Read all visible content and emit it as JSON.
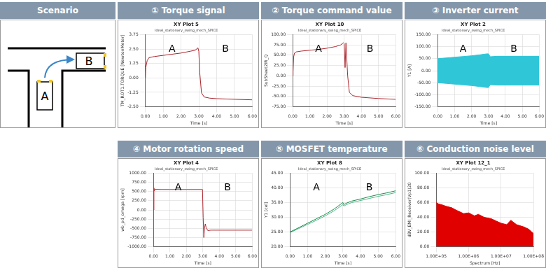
{
  "scenario": {
    "header": "Scenario",
    "labels": [
      "A",
      "B"
    ]
  },
  "chart_data": [
    {
      "header": "① Torque signal",
      "type": "line",
      "title": "XY Plot 5",
      "subtitle": "Ideal_stationary_swing_mech_SPICE",
      "x_label": "Time [s]",
      "y_label": "TM_ROT1.TORQUE [NewtonMeter]",
      "annotations": [
        "A",
        "B"
      ],
      "grid": true,
      "xlim": [
        0,
        6
      ],
      "xticks": [
        {
          "value": 0,
          "label": "0.00"
        },
        {
          "value": 1,
          "label": "1.00"
        },
        {
          "value": 2,
          "label": "2.00"
        },
        {
          "value": 3,
          "label": "3.00"
        },
        {
          "value": 4,
          "label": "4.00"
        },
        {
          "value": 5,
          "label": "5.00"
        },
        {
          "value": 6,
          "label": "6.00"
        }
      ],
      "ylim": [
        -2.5,
        3.75
      ],
      "yticks": [
        {
          "value": -2.5,
          "label": "-2.50"
        },
        {
          "value": -1.25,
          "label": "-1.25"
        },
        {
          "value": 0,
          "label": "0.00"
        },
        {
          "value": 1.25,
          "label": "1.25"
        },
        {
          "value": 2.5,
          "label": "2.50"
        },
        {
          "value": 3.75,
          "label": "3.75"
        }
      ],
      "x": [
        0,
        0.02,
        0.1,
        0.2,
        0.5,
        1,
        1.5,
        2,
        2.5,
        2.8,
        2.95,
        3.0,
        3.05,
        3.15,
        3.3,
        3.6,
        4,
        5,
        6
      ],
      "series": [
        {
          "color": "#a8232a",
          "values": [
            0,
            0.9,
            1.5,
            1.75,
            1.85,
            1.95,
            2.05,
            2.15,
            2.3,
            2.4,
            2.6,
            2.3,
            0.5,
            -1.3,
            -1.65,
            -1.75,
            -1.8,
            -1.85,
            -1.9
          ]
        }
      ]
    },
    {
      "header": "② Torque command value",
      "type": "line",
      "title": "XY Plot 10",
      "subtitle": "Ideal_stationary_swing_mech_SPICE",
      "x_label": "Time [s]",
      "y_label": "SubSheet2IR_Q",
      "annotations": [
        "A",
        "B"
      ],
      "grid": true,
      "xlim": [
        0,
        6
      ],
      "xticks": [
        {
          "value": 0,
          "label": "0.00"
        },
        {
          "value": 1,
          "label": "1.00"
        },
        {
          "value": 2,
          "label": "2.00"
        },
        {
          "value": 3,
          "label": "3.00"
        },
        {
          "value": 4,
          "label": "4.00"
        },
        {
          "value": 5,
          "label": "5.00"
        },
        {
          "value": 6,
          "label": "6.00"
        }
      ],
      "ylim": [
        -75,
        100
      ],
      "yticks": [
        {
          "value": -75,
          "label": "-75.00"
        },
        {
          "value": -50,
          "label": "-50.00"
        },
        {
          "value": -25,
          "label": "-25.00"
        },
        {
          "value": 0,
          "label": "0.00"
        },
        {
          "value": 25,
          "label": "25.00"
        },
        {
          "value": 50,
          "label": "50.00"
        },
        {
          "value": 75,
          "label": "75.00"
        },
        {
          "value": 100,
          "label": "100.00"
        }
      ],
      "x": [
        0,
        0.02,
        0.05,
        0.1,
        0.2,
        0.5,
        1,
        1.5,
        2,
        2.5,
        2.8,
        2.95,
        3.0,
        3.05,
        3.1,
        3.2,
        3.3,
        3.5,
        4,
        5,
        6
      ],
      "series": [
        {
          "color": "#b0282f",
          "values": [
            0,
            10,
            45,
            55,
            58,
            60,
            62,
            64,
            67,
            71,
            75,
            80,
            78,
            20,
            80,
            0,
            -40,
            -48,
            -52,
            -55,
            -57
          ]
        }
      ]
    },
    {
      "header": "③ Inverter current",
      "type": "band",
      "title": "XY Plot 2",
      "subtitle": "Ideal_stationary_swing_mech_SPICE",
      "x_label": "Time [s]",
      "y_label": "Y1 [A]",
      "annotations": [
        "A",
        "B"
      ],
      "grid": true,
      "xlim": [
        0,
        6
      ],
      "xticks": [
        {
          "value": 0,
          "label": "0.00"
        },
        {
          "value": 1,
          "label": "1.00"
        },
        {
          "value": 2,
          "label": "2.00"
        },
        {
          "value": 3,
          "label": "3.00"
        },
        {
          "value": 4,
          "label": "4.00"
        },
        {
          "value": 5,
          "label": "5.00"
        },
        {
          "value": 6,
          "label": "6.00"
        }
      ],
      "ylim": [
        -150,
        150
      ],
      "yticks": [
        {
          "value": -150,
          "label": "-150.00"
        },
        {
          "value": -100,
          "label": "-100.00"
        },
        {
          "value": -50,
          "label": "-50.00"
        },
        {
          "value": 0,
          "label": "0.00"
        },
        {
          "value": 50,
          "label": "50.00"
        },
        {
          "value": 100,
          "label": "100.00"
        },
        {
          "value": 150,
          "label": "150.00"
        }
      ],
      "x": [
        0,
        0.5,
        1,
        1.5,
        2,
        2.5,
        2.9,
        3.0,
        3.1,
        3.5,
        4,
        5,
        6
      ],
      "series": [
        {
          "color": "#2fc6d8",
          "values": [
            50,
            53,
            56,
            59,
            62,
            66,
            70,
            70,
            58,
            60,
            60,
            60,
            60
          ]
        },
        {
          "color": "#2fc6d8",
          "values": [
            -50,
            -53,
            -56,
            -59,
            -62,
            -66,
            -70,
            -70,
            -58,
            -60,
            -60,
            -60,
            -60
          ]
        }
      ]
    },
    {
      "header": "④ Motor rotation speed",
      "type": "line",
      "title": "XY Plot 4",
      "subtitle": "Ideal_stationary_swing_mech_SPICE",
      "x_label": "Time [s]",
      "y_label": "wb_pd_omega [rpm]",
      "annotations": [
        "A",
        "B"
      ],
      "grid": true,
      "xlim": [
        0,
        6
      ],
      "xticks": [
        {
          "value": 0,
          "label": "0.00"
        },
        {
          "value": 1,
          "label": "1.00"
        },
        {
          "value": 2,
          "label": "2.00"
        },
        {
          "value": 3,
          "label": "3.00"
        },
        {
          "value": 4,
          "label": "4.00"
        },
        {
          "value": 5,
          "label": "5.00"
        },
        {
          "value": 6,
          "label": "6.00"
        }
      ],
      "ylim": [
        -1000,
        1000
      ],
      "yticks": [
        {
          "value": -1000,
          "label": "-1000.00"
        },
        {
          "value": -750,
          "label": "-750.00"
        },
        {
          "value": -500,
          "label": "-500.00"
        },
        {
          "value": -250,
          "label": "-250.00"
        },
        {
          "value": 0,
          "label": "0.00"
        },
        {
          "value": 250,
          "label": "250.00"
        },
        {
          "value": 500,
          "label": "500.00"
        },
        {
          "value": 750,
          "label": "750.00"
        },
        {
          "value": 1000,
          "label": "1000.00"
        }
      ],
      "x": [
        0,
        0.03,
        0.06,
        0.1,
        0.5,
        1,
        2,
        2.98,
        3.02,
        3.06,
        3.1,
        3.15,
        3.2,
        3.3,
        3.5,
        4,
        5,
        6
      ],
      "series": [
        {
          "color": "#b0282f",
          "values": [
            0,
            600,
            520,
            560,
            555,
            555,
            555,
            555,
            -200,
            -750,
            -500,
            -380,
            -480,
            -560,
            -550,
            -550,
            -550,
            -550
          ]
        }
      ]
    },
    {
      "header": "⑤ MOSFET temperature",
      "type": "line",
      "title": "XY Plot 8",
      "subtitle": "Ideal_stationary_swing_mech_SPICE",
      "x_label": "Time [s]",
      "y_label": "Y1 [cel]",
      "annotations": [
        "A",
        "B"
      ],
      "grid": true,
      "xlim": [
        0,
        6
      ],
      "xticks": [
        {
          "value": 0,
          "label": "0.00"
        },
        {
          "value": 1,
          "label": "1.00"
        },
        {
          "value": 2,
          "label": "2.00"
        },
        {
          "value": 3,
          "label": "3.00"
        },
        {
          "value": 4,
          "label": "4.00"
        },
        {
          "value": 5,
          "label": "5.00"
        },
        {
          "value": 6,
          "label": "6.00"
        }
      ],
      "ylim": [
        20,
        45
      ],
      "yticks": [
        {
          "value": 20,
          "label": "20.00"
        },
        {
          "value": 25,
          "label": "25.00"
        },
        {
          "value": 30,
          "label": "30.00"
        },
        {
          "value": 35,
          "label": "35.00"
        },
        {
          "value": 40,
          "label": "40.00"
        },
        {
          "value": 45,
          "label": "45.00"
        }
      ],
      "x": [
        0,
        0.5,
        1,
        1.5,
        2,
        2.5,
        3.0,
        3.05,
        3.2,
        3.5,
        4,
        4.5,
        5,
        5.5,
        6
      ],
      "series": [
        {
          "color": "#1b8a4c",
          "values": [
            25,
            26.5,
            28,
            29.5,
            31,
            32.8,
            35,
            34.3,
            34.8,
            35.5,
            36.2,
            37,
            37.7,
            38.3,
            39
          ]
        },
        {
          "color": "#4fb889",
          "values": [
            24.8,
            26.2,
            27.6,
            29,
            30.5,
            32.2,
            34.3,
            33.8,
            34.3,
            35,
            35.7,
            36.4,
            37.1,
            37.7,
            38.4
          ]
        }
      ]
    },
    {
      "header": "⑥ Conduction noise level",
      "type": "area",
      "title": "XY Plot 12_1",
      "subtitle": "Ideal_stationary_swing_mech_SPICE",
      "x_label": "Spectrum [Hz]",
      "y_label": "dBV_EMI_Receiver(Vp1)20",
      "grid": true,
      "log": "x",
      "xlim": [
        100000,
        100000000
      ],
      "xticks": [
        {
          "value": 100000,
          "label": "1.00E+05"
        },
        {
          "value": 1000000,
          "label": "1.00E+06"
        },
        {
          "value": 10000000,
          "label": "1.00E+07"
        },
        {
          "value": 100000000,
          "label": "1.00E+08"
        }
      ],
      "ylim": [
        0,
        100
      ],
      "yticks": [
        {
          "value": 0,
          "label": "0.00"
        },
        {
          "value": 20,
          "label": "20.00"
        },
        {
          "value": 40,
          "label": "40.00"
        },
        {
          "value": 60,
          "label": "60.00"
        },
        {
          "value": 80,
          "label": "80.00"
        },
        {
          "value": 100,
          "label": "100.00"
        }
      ],
      "x": [
        100000,
        120000,
        150000,
        200000,
        300000,
        400000,
        500000,
        700000,
        1000000,
        1500000,
        2000000,
        3000000,
        5000000,
        7000000,
        10000000,
        15000000,
        20000000,
        30000000,
        50000000,
        70000000,
        100000000
      ],
      "series": [
        {
          "color": "#e00000",
          "values": [
            60,
            58,
            57,
            55,
            53,
            50,
            48,
            45,
            46,
            42,
            44,
            40,
            38,
            35,
            32,
            30,
            36,
            30,
            27,
            24,
            18
          ]
        }
      ]
    }
  ]
}
